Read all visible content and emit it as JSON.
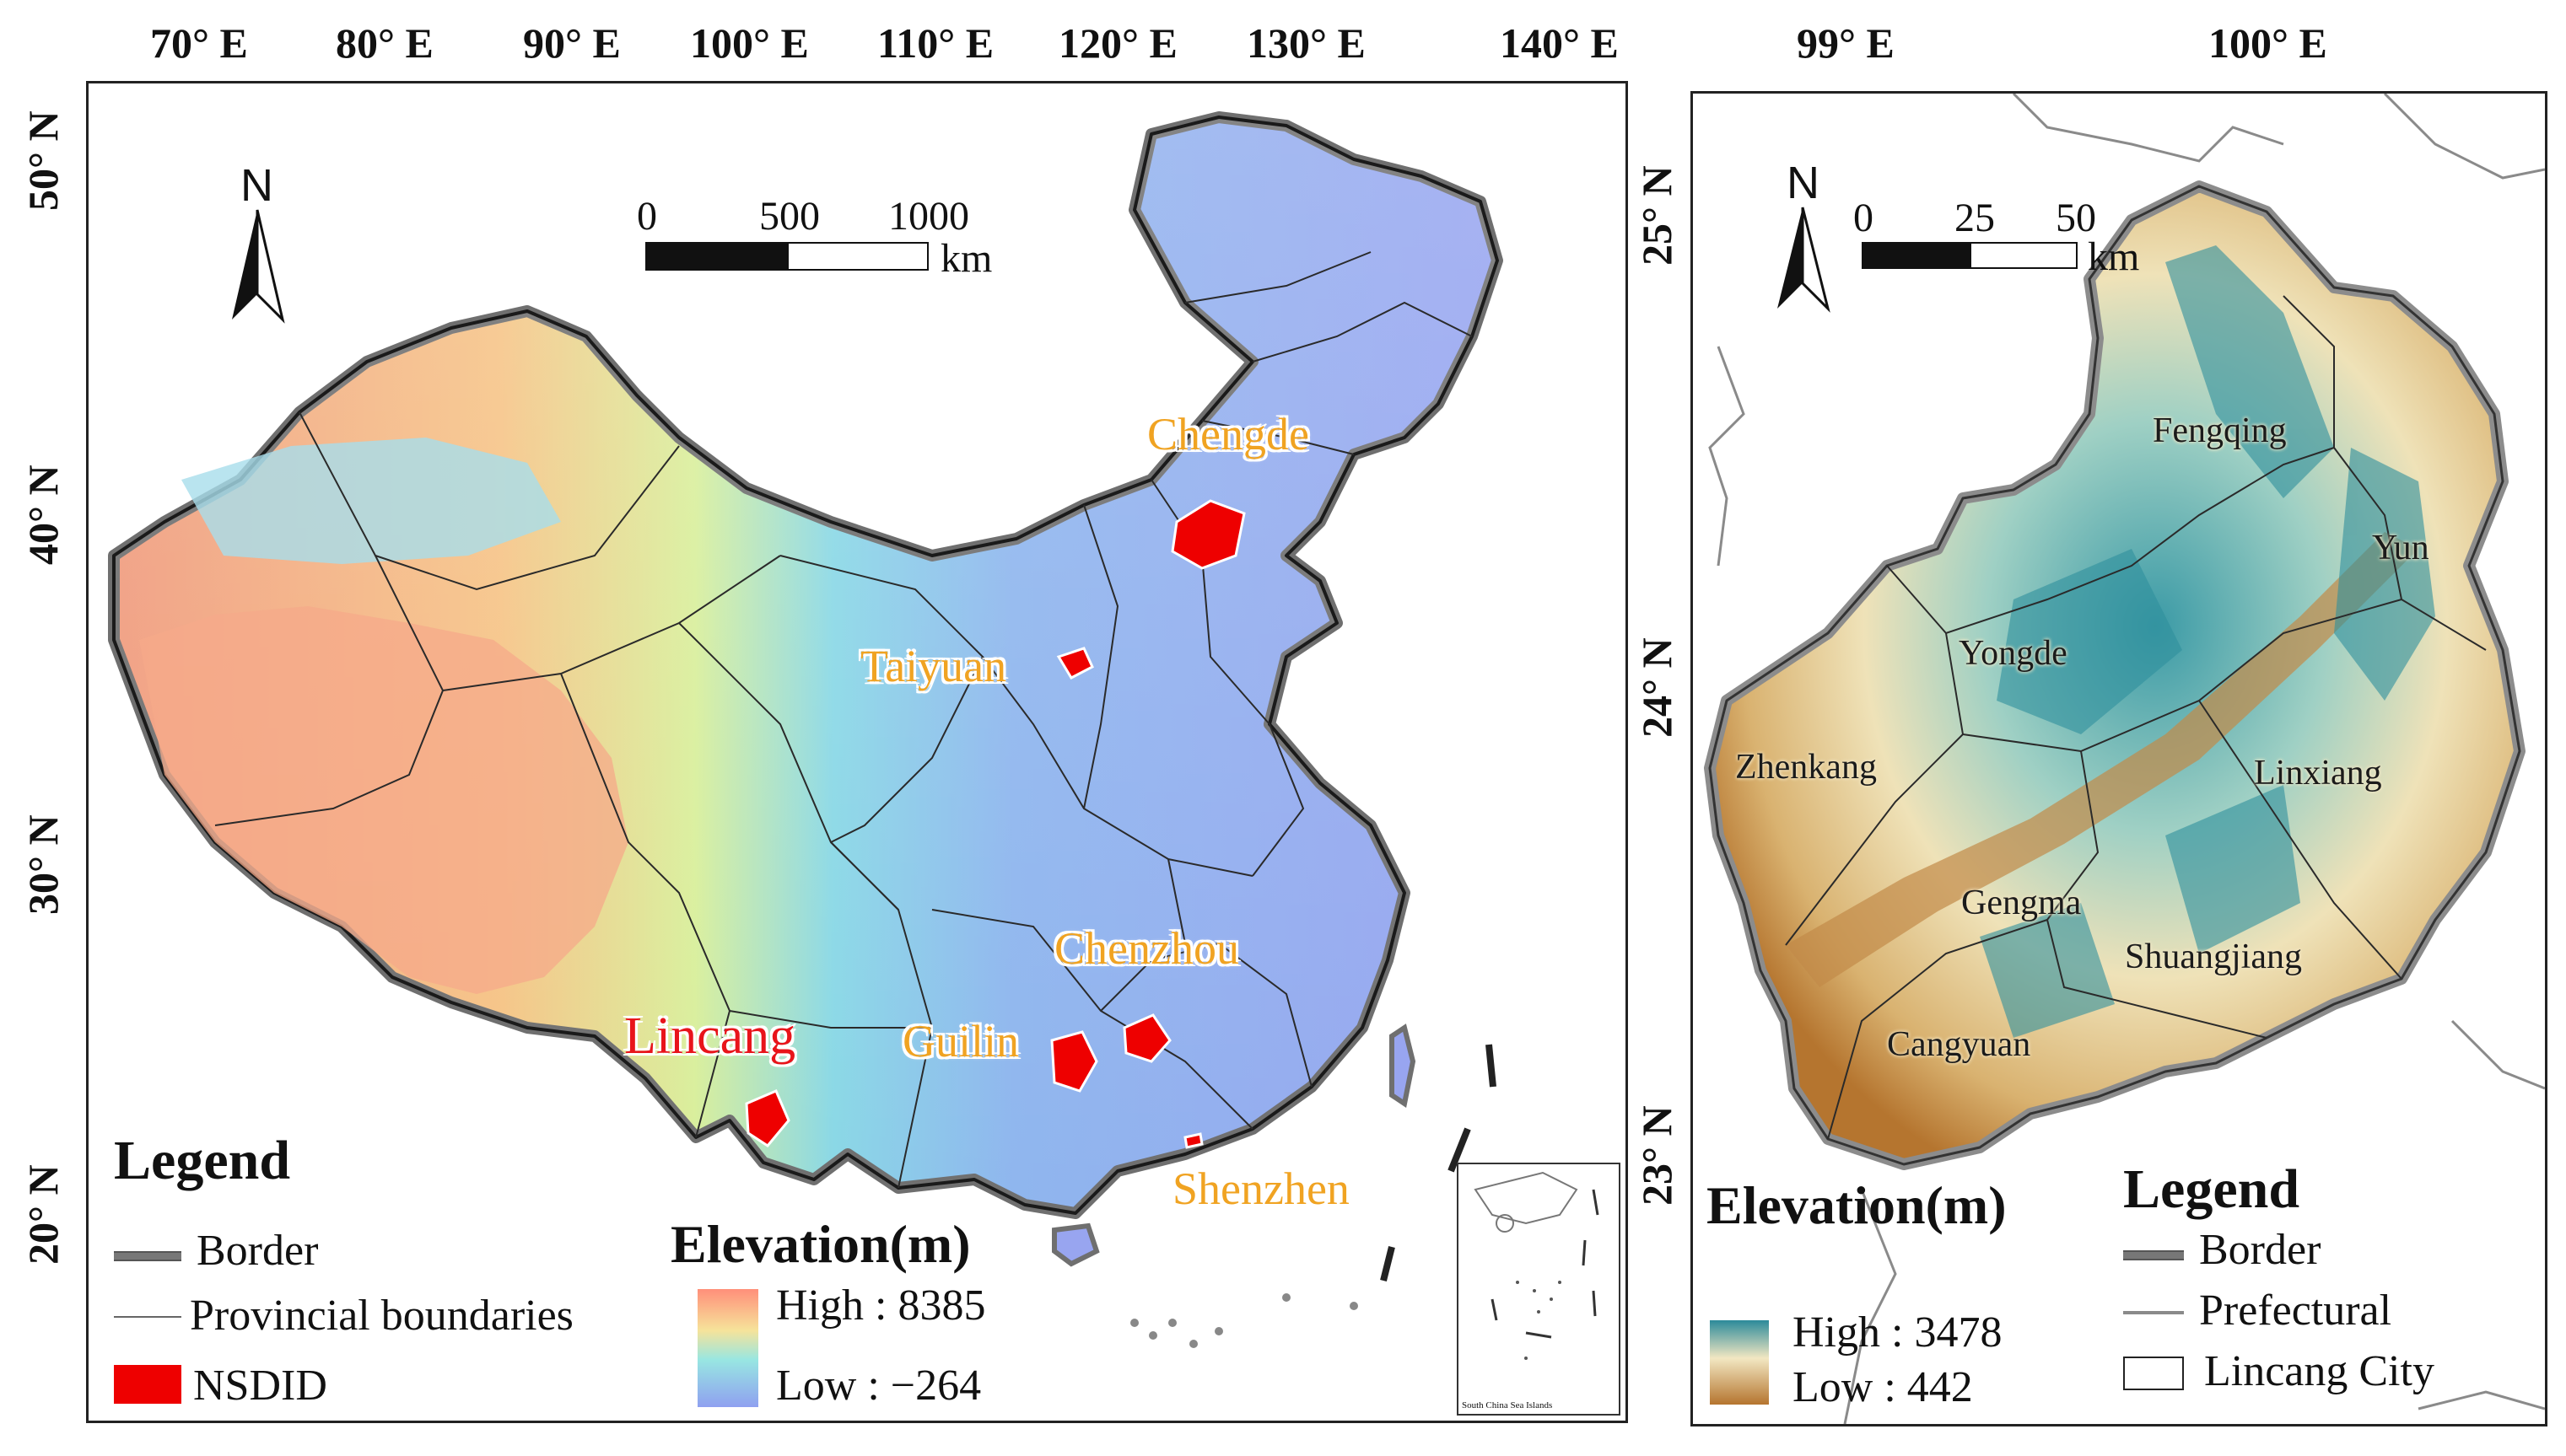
{
  "left_map": {
    "longitude_labels": [
      "70° E",
      "80° E",
      "90° E",
      "100° E",
      "110° E",
      "120° E",
      "130° E",
      "140° E"
    ],
    "latitude_labels": [
      "50° N",
      "40° N",
      "30° N",
      "20° N"
    ],
    "north_label": "N",
    "scale": {
      "ticks": [
        "0",
        "500",
        "1000"
      ],
      "unit": "km"
    },
    "cities": [
      {
        "name": "Chengde",
        "color": "#f0a322"
      },
      {
        "name": "Taiyuan",
        "color": "#f0a322"
      },
      {
        "name": "Chenzhou",
        "color": "#f0a322"
      },
      {
        "name": "Guilin",
        "color": "#f0a322"
      },
      {
        "name": "Lincang",
        "color": "#e8141b"
      },
      {
        "name": "Shenzhen",
        "color": "#f0a322"
      }
    ],
    "legend": {
      "title": "Legend",
      "border": "Border",
      "provincial": "Provincial boundaries",
      "nsdid": "NSDID"
    },
    "elevation": {
      "title": "Elevation(m)",
      "high": "High : 8385",
      "low": "Low : −264"
    },
    "inset_caption": "South China Sea Islands"
  },
  "right_map": {
    "longitude_labels": [
      "99° E",
      "100° E"
    ],
    "latitude_labels": [
      "25° N",
      "24° N",
      "23° N"
    ],
    "north_label": "N",
    "scale": {
      "ticks": [
        "0",
        "25",
        "50"
      ],
      "unit": "km"
    },
    "counties": [
      "Fengqing",
      "Yun",
      "Yongde",
      "Zhenkang",
      "Linxiang",
      "Gengma",
      "Shuangjiang",
      "Cangyuan"
    ],
    "elevation": {
      "title": "Elevation(m)",
      "high": "High : 3478",
      "low": "Low : 442"
    },
    "legend": {
      "title": "Legend",
      "border": "Border",
      "prefectural": "Prefectural",
      "city": "Lincang City"
    }
  },
  "colors": {
    "nsdid": "#ee0000",
    "city_orange": "#f0a322",
    "lincang_red": "#e8141b",
    "elev_high_left": "#ff8f7a",
    "elev_low_left": "#8fa0f0",
    "elev_high_right": "#2b8a9a",
    "elev_low_right": "#b5752f"
  }
}
